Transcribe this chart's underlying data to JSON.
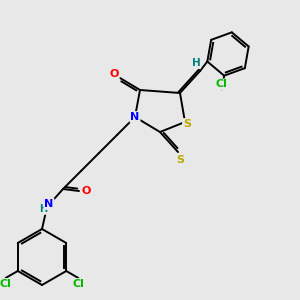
{
  "bg_color": "#e8e8e8",
  "atom_colors": {
    "N": "#0000ff",
    "O": "#ff0000",
    "S": "#bbaa00",
    "Cl": "#00bb00",
    "H": "#008080"
  },
  "bond_color": "#000000",
  "figsize": [
    3.0,
    3.0
  ],
  "dpi": 100
}
